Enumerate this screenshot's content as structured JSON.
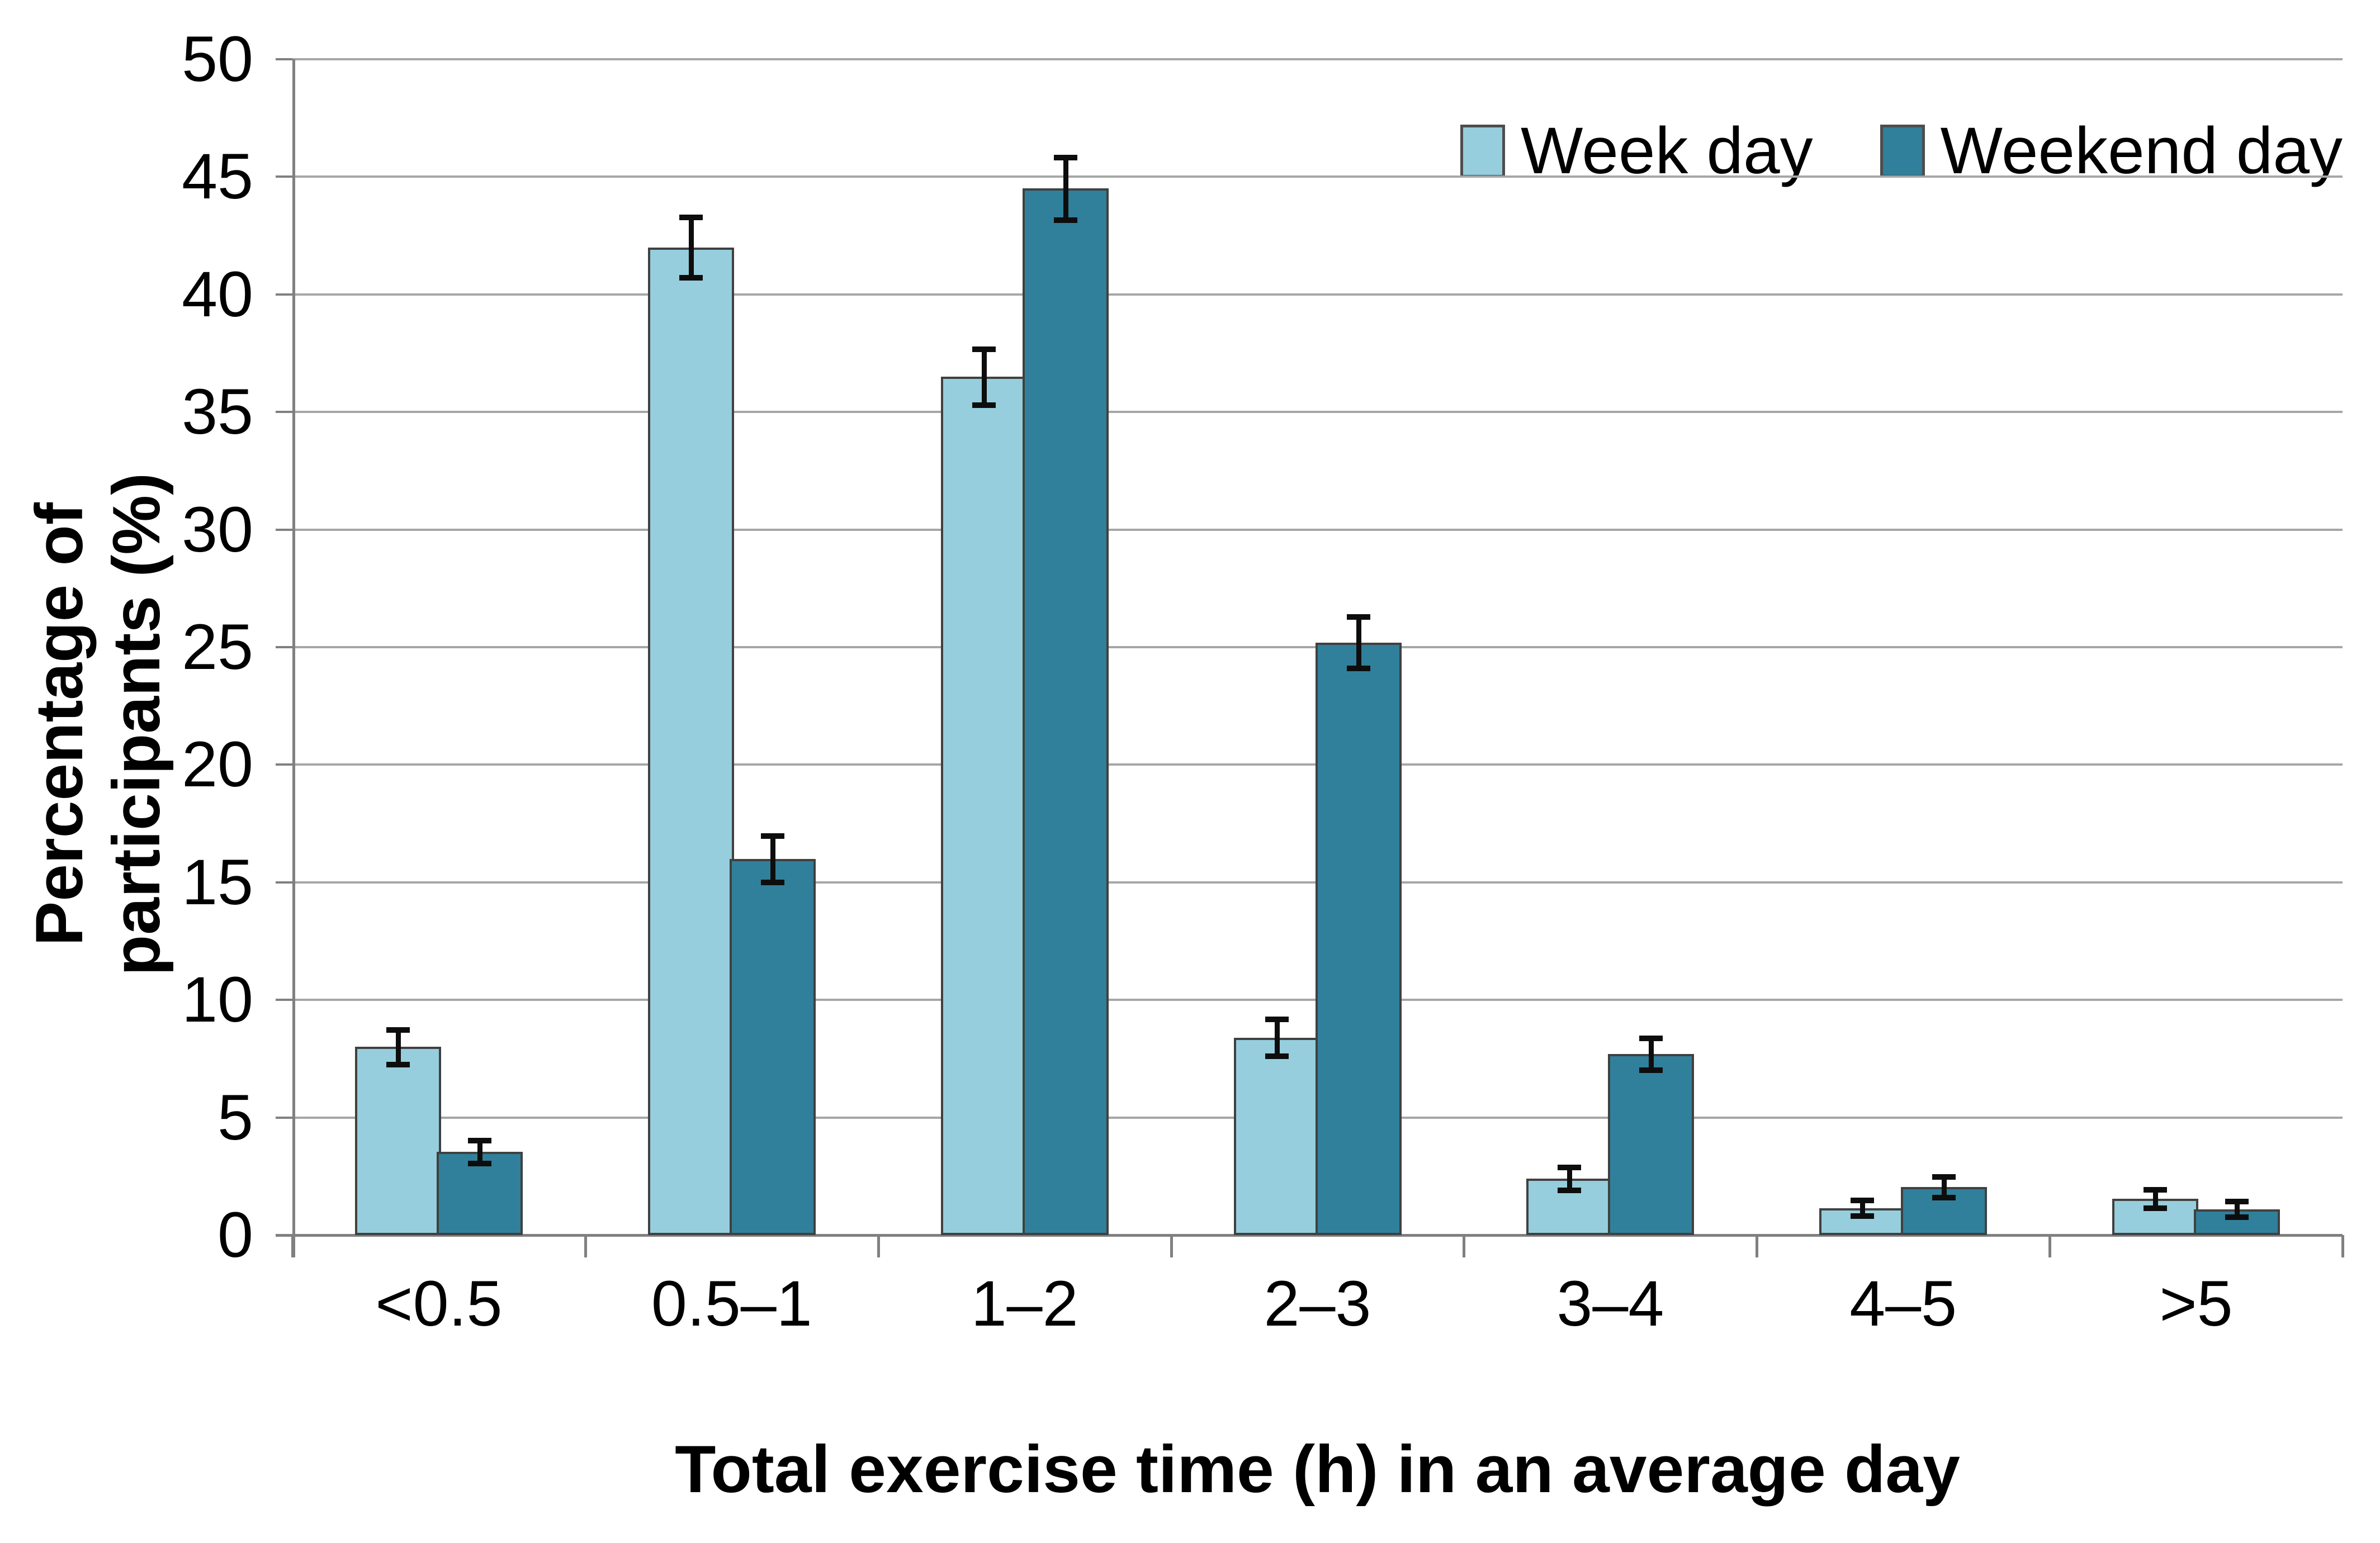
{
  "chart_data": {
    "type": "bar",
    "title": "",
    "xlabel": "Total exercise time (h) in an average day",
    "ylabel": "Percentage of participants (%)",
    "categories": [
      "<0.5",
      "0.5–1",
      "1–2",
      "2–3",
      "3–4",
      "4–5",
      ">5"
    ],
    "series": [
      {
        "name": "Week day",
        "color": "#96CEDD",
        "values": [
          8.0,
          42.0,
          36.5,
          8.4,
          2.4,
          1.15,
          1.55
        ],
        "errors": [
          0.75,
          1.3,
          1.2,
          0.8,
          0.5,
          0.35,
          0.4
        ]
      },
      {
        "name": "Weekend day",
        "color": "#30809B",
        "values": [
          3.55,
          16.0,
          44.5,
          25.2,
          7.7,
          2.05,
          1.1
        ],
        "errors": [
          0.5,
          1.0,
          1.35,
          1.1,
          0.7,
          0.45,
          0.35
        ]
      }
    ],
    "ylim": [
      0,
      50
    ],
    "ytick_step": 5,
    "grid": true,
    "error_bars": true,
    "legend_position": "top-right",
    "colors": {
      "gridline": "#a6a6a6",
      "axis": "#808080",
      "bar_border": "#404040",
      "error_bar": "#0d0d0d",
      "text": "#000000"
    }
  }
}
